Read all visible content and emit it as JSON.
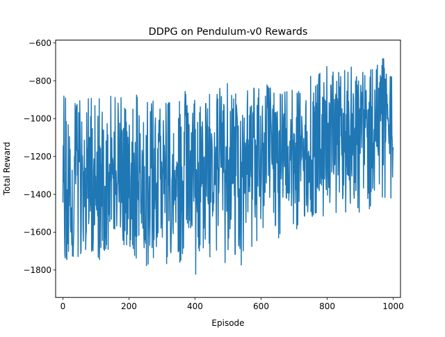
{
  "chart_data": {
    "type": "line",
    "title": "DDPG on Pendulum-v0 Rewards",
    "xlabel": "Episode",
    "ylabel": "Total Reward",
    "xlim": [
      -22,
      1022
    ],
    "ylim": [
      -1945,
      -585
    ],
    "xticks": [
      0,
      200,
      400,
      600,
      800,
      1000
    ],
    "yticks": [
      -1800,
      -1600,
      -1400,
      -1200,
      -1000,
      -800,
      -600
    ],
    "xtick_labels": [
      "0",
      "200",
      "400",
      "600",
      "800",
      "1000"
    ],
    "ytick_labels": [
      "−1800",
      "−1600",
      "−1400",
      "−1200",
      "−1000",
      "−800",
      "−600"
    ],
    "grid": false,
    "series_color": "#1f77b4",
    "series": [
      {
        "x_start": 0,
        "x_step": 10,
        "values": [
          -1350,
          -1700,
          -1280,
          -1560,
          -1200,
          -1320,
          -1450,
          -1180,
          -1500,
          -1250,
          -1380,
          -1420,
          -1220,
          -1550,
          -1300,
          -1280,
          -1460,
          -1230,
          -1350,
          -1600,
          -1290,
          -1310,
          -1400,
          -1260,
          -1330,
          -1420,
          -1280,
          -1500,
          -1350,
          -1240,
          -1380,
          -1320,
          -1270,
          -1450,
          -1300,
          -1480,
          -1350,
          -1260,
          -1400,
          -1330,
          -1290,
          -1420,
          -1250,
          -1380,
          -1340,
          -1310,
          -1270,
          -1350,
          -1220,
          -1300,
          -1250,
          -1330,
          -1280,
          -1210,
          -1260,
          -1180,
          -1300,
          -1240,
          -1220,
          -1170,
          -1200,
          -1260,
          -1150,
          -1230,
          -1180,
          -1210,
          -1140,
          -1190,
          -1250,
          -1160,
          -1200,
          -1120,
          -1150,
          -1180,
          -1100,
          -1160,
          -1130,
          -1090,
          -1150,
          -1120,
          -1080,
          -1140,
          -1100,
          -1070,
          -1130,
          -1060,
          -1110,
          -1080,
          -1050,
          -1100,
          -1070,
          -1040,
          -1090,
          -1060,
          -1080,
          -1030,
          -1070,
          -1050,
          -1090,
          -1060,
          -1040
        ],
        "envelope_high": [
          -870,
          -800,
          -880,
          -760,
          -850,
          -900,
          -820,
          -910,
          -850,
          -880,
          -780,
          -870,
          -920,
          -830,
          -860,
          -900,
          -880,
          -840,
          -870,
          -850,
          -900,
          -860,
          -820,
          -880,
          -870,
          -910,
          -840,
          -880,
          -850,
          -900,
          -870,
          -860,
          -820,
          -880,
          -900,
          -850,
          -870,
          -840,
          -880,
          -900,
          -860,
          -900,
          -850,
          -880,
          -830,
          -870,
          -900,
          -850,
          -820,
          -860,
          -790,
          -840,
          -880,
          -800,
          -850,
          -780,
          -830,
          -860,
          -750,
          -820,
          -850,
          -800,
          -780,
          -840,
          -760,
          -820,
          -790,
          -850,
          -760,
          -810,
          -780,
          -740,
          -800,
          -760,
          -820,
          -730,
          -780,
          -800,
          -690,
          -760,
          -720,
          -780,
          -700,
          -750,
          -720,
          -680,
          -740,
          -710,
          -760,
          -700,
          -640,
          -720,
          -760,
          -700,
          -730,
          -680,
          -720,
          -650,
          -740,
          -700,
          -750
        ],
        "envelope_low": [
          -1740,
          -1800,
          -1780,
          -1720,
          -1800,
          -1760,
          -1700,
          -1780,
          -1620,
          -1740,
          -1700,
          -1760,
          -1680,
          -1740,
          -1720,
          -1650,
          -1760,
          -1700,
          -1780,
          -1700,
          -1650,
          -1760,
          -1880,
          -1740,
          -1800,
          -1760,
          -1830,
          -1780,
          -1700,
          -1860,
          -1740,
          -1790,
          -1860,
          -1800,
          -1700,
          -1760,
          -1820,
          -1720,
          -1800,
          -1760,
          -1870,
          -1760,
          -1700,
          -1800,
          -1740,
          -1780,
          -1720,
          -1820,
          -1760,
          -1800,
          -1740,
          -1700,
          -1760,
          -1690,
          -1840,
          -1720,
          -1660,
          -1700,
          -1620,
          -1680,
          -1640,
          -1600,
          -1660,
          -1620,
          -1580,
          -1640,
          -1610,
          -1560,
          -1600,
          -1540,
          -1580,
          -1620,
          -1560,
          -1540,
          -1500,
          -1580,
          -1520,
          -1560,
          -1480,
          -1530,
          -1500,
          -1560,
          -1470,
          -1520,
          -1490,
          -1540,
          -1480,
          -1510,
          -1460,
          -1520,
          -1500,
          -1470,
          -1540,
          -1490,
          -1450,
          -1510,
          -1480,
          -1520,
          -1460,
          -1500,
          -1490
        ]
      }
    ]
  }
}
